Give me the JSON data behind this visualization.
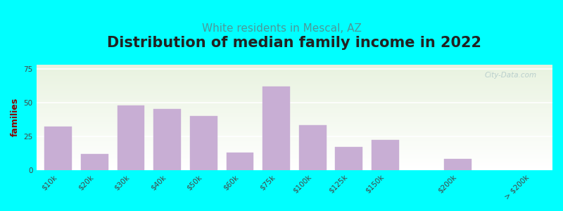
{
  "title": "Distribution of median family income in 2022",
  "subtitle": "White residents in Mescal, AZ",
  "ylabel": "families",
  "background_color": "#00FFFF",
  "bar_color": "#c8aed4",
  "bar_edge_color": "#c8aed4",
  "title_color": "#222222",
  "subtitle_color": "#4a9a9a",
  "ylabel_color": "#8B0000",
  "categories": [
    "$10k",
    "$20k",
    "$30k",
    "$40k",
    "$50k",
    "$60k",
    "$75k",
    "$100k",
    "$125k",
    "$150k",
    "$200k",
    "> $200k"
  ],
  "values": [
    32,
    12,
    48,
    45,
    40,
    13,
    62,
    33,
    17,
    22,
    8,
    0
  ],
  "bar_positions": [
    0,
    1,
    2,
    3,
    4,
    5,
    6,
    7,
    8,
    9,
    11,
    13
  ],
  "ylim": [
    0,
    78
  ],
  "yticks": [
    0,
    25,
    50,
    75
  ],
  "watermark": "City-Data.com",
  "title_fontsize": 15,
  "subtitle_fontsize": 11,
  "ylabel_fontsize": 9,
  "tick_fontsize": 7.5
}
